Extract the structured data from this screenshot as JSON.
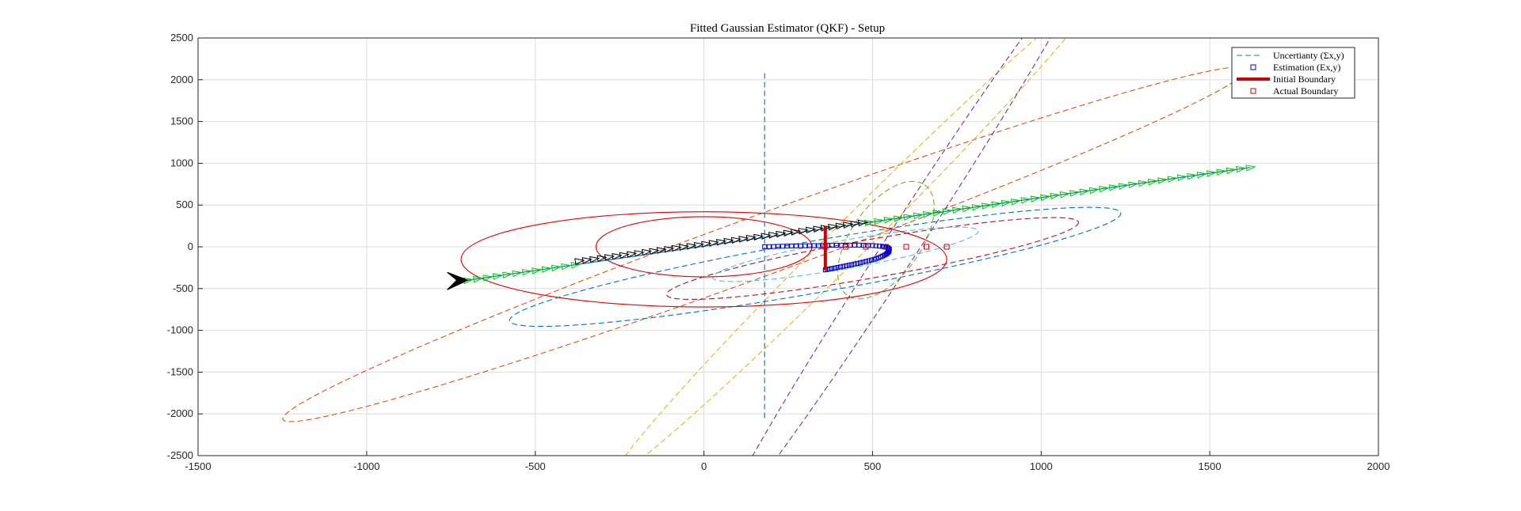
{
  "chart_data": {
    "type": "scatter",
    "title": "Fitted Gaussian Estimator (QKF) - Setup",
    "xlabel": "",
    "ylabel": "",
    "xlim": [
      -1500,
      2000
    ],
    "ylim": [
      -2500,
      2500
    ],
    "xticks": [
      -1500,
      -1000,
      -500,
      0,
      500,
      1000,
      1500,
      2000
    ],
    "yticks": [
      -2500,
      -2000,
      -1500,
      -1000,
      -500,
      0,
      500,
      1000,
      1500,
      2000,
      2500
    ],
    "xtick_labels": [
      "-1500",
      "-1000",
      "-500",
      "0",
      "500",
      "1000",
      "1500",
      "2000"
    ],
    "ytick_labels": [
      "-2500",
      "-2000",
      "-1500",
      "-1000",
      "-500",
      "0",
      "500",
      "1000",
      "1500",
      "2000",
      "2500"
    ],
    "grid": true,
    "legend_position": "top-right",
    "legend": [
      {
        "label": "Uncertianty (Σx,y)",
        "style": "dashed-line",
        "color": "#4a90c8"
      },
      {
        "label": "Estimation (Ex,y)",
        "style": "square-marker",
        "color": "#0000cc"
      },
      {
        "label": "Initial Boundary",
        "style": "thick-line",
        "color": "#cc0000"
      },
      {
        "label": "Actual Boundary",
        "style": "square-marker",
        "color": "#cc0000"
      }
    ],
    "ellipses": [
      {
        "cx": 180,
        "cy": 30,
        "rx": 1520,
        "ry": 360,
        "angle": -20,
        "color": "#d95319",
        "style": "dashed"
      },
      {
        "cx": 450,
        "cy": 150,
        "rx": 1000,
        "ry": 220,
        "angle": -45,
        "color": "#edb120",
        "style": "dashed"
      },
      {
        "cx": 600,
        "cy": 100,
        "rx": 1000,
        "ry": 200,
        "angle": -57,
        "color": "#7e2f8e",
        "style": "dashed"
      },
      {
        "cx": 330,
        "cy": -240,
        "rx": 920,
        "ry": 310,
        "angle": -10,
        "color": "#0072bd",
        "style": "dashed"
      },
      {
        "cx": 500,
        "cy": -140,
        "rx": 620,
        "ry": 230,
        "angle": -10,
        "color": "#a2142f",
        "style": "dashed"
      },
      {
        "cx": 420,
        "cy": -90,
        "rx": 400,
        "ry": 170,
        "angle": -10,
        "color": "#4dbeee",
        "style": "dashed"
      },
      {
        "cx": 540,
        "cy": 80,
        "rx": 200,
        "ry": 420,
        "angle": -55,
        "color": "#77ac30",
        "style": "dashed"
      },
      {
        "cx": 0,
        "cy": -150,
        "rx": 720,
        "ry": 570,
        "angle": 0,
        "color": "#e00000",
        "style": "solid"
      },
      {
        "cx": 0,
        "cy": 0,
        "rx": 320,
        "ry": 360,
        "angle": 0,
        "color": "#e00000",
        "style": "solid"
      }
    ],
    "vertical_dashed_line": {
      "x": 180,
      "y0": -2050,
      "y1": 2080,
      "color": "#0072bd"
    },
    "trajectory_line": {
      "x0": -700,
      "y0": -400,
      "x1": 1620,
      "y1": 950,
      "color": "#0072bd"
    },
    "green_triangles": {
      "x0": -700,
      "y0": -400,
      "x1": 1620,
      "y1": 950,
      "skip_from": -370,
      "skip_to": 470,
      "count": 80,
      "color": "#00cc00"
    },
    "black_triangles": {
      "x0": -370,
      "y0": -170,
      "x1": 470,
      "y1": 290,
      "count": 38,
      "color": "#000000"
    },
    "black_arrow_head": {
      "x": -700,
      "y": -400
    },
    "estimation_path": {
      "x": [
        180,
        220,
        260,
        300,
        340,
        380,
        420,
        460,
        500,
        530,
        545,
        550,
        548,
        540,
        525,
        505,
        480,
        455,
        430,
        405,
        380,
        360
      ],
      "y": [
        0,
        5,
        10,
        12,
        15,
        18,
        20,
        20,
        15,
        5,
        -10,
        -30,
        -60,
        -90,
        -120,
        -150,
        -175,
        -200,
        -220,
        -240,
        -260,
        -275
      ]
    },
    "initial_boundary": {
      "x": [
        360,
        360
      ],
      "y": [
        250,
        -280
      ]
    },
    "actual_boundary_points": {
      "x": [
        360,
        420,
        480,
        540,
        600,
        660,
        720
      ],
      "y": [
        0,
        0,
        0,
        0,
        0,
        0,
        0
      ]
    }
  }
}
